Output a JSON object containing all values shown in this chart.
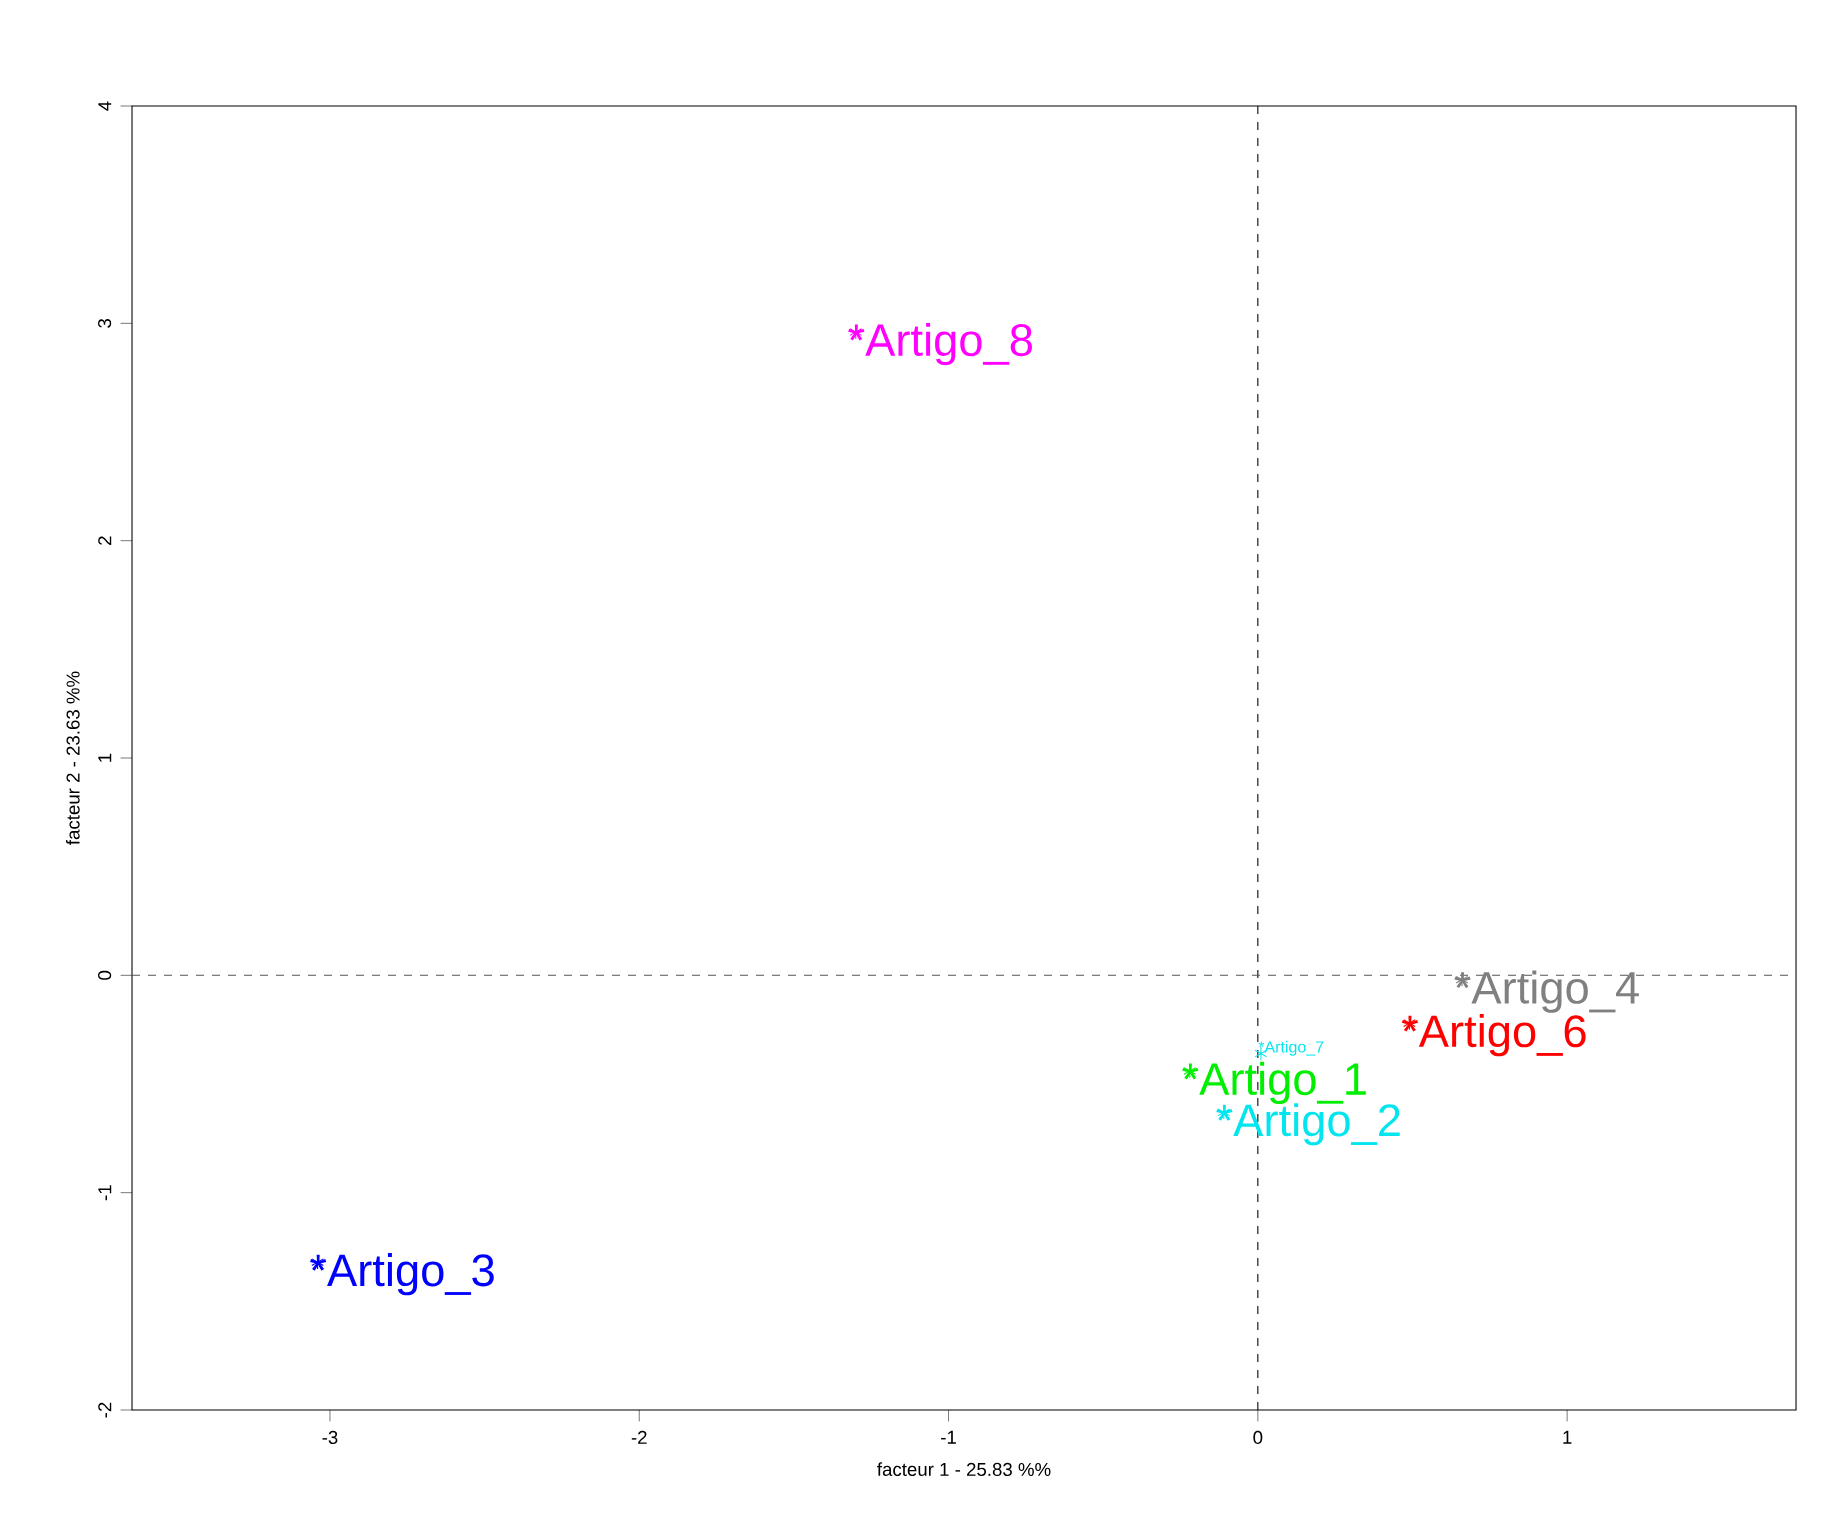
{
  "chart_data": {
    "type": "scatter",
    "marker": "cross",
    "xlabel": "facteur  1  - 25.83 %%",
    "ylabel": "facteur  2  - 23.63 %%",
    "xlim": [
      -3.64,
      1.74
    ],
    "ylim": [
      -2,
      4
    ],
    "xticks": [
      -3,
      -2,
      -1,
      0,
      1
    ],
    "yticks": [
      -2,
      -1,
      0,
      1,
      2,
      3,
      4
    ],
    "ref_lines": [
      {
        "axis": "x",
        "value": 0,
        "color": "#000000",
        "line_style": "dashed"
      },
      {
        "axis": "y",
        "value": 0,
        "color": "#555555",
        "line_style": "dashed"
      }
    ],
    "series": [
      {
        "name": "*Artigo_8",
        "color": "#ff00ff",
        "x": [
          -1.3
        ],
        "values": [
          2.96
        ]
      },
      {
        "name": "*Artigo_3",
        "color": "#0000ff",
        "x": [
          -3.04
        ],
        "values": [
          -1.32
        ]
      },
      {
        "name": "*Artigo_4",
        "color": "#808080",
        "x": [
          0.66
        ],
        "values": [
          -0.02
        ]
      },
      {
        "name": "*Artigo_6",
        "color": "#ff0000",
        "x": [
          0.49
        ],
        "values": [
          -0.22
        ]
      },
      {
        "name": "*Artigo_1",
        "color": "#00ee00",
        "x": [
          -0.22
        ],
        "values": [
          -0.44
        ]
      },
      {
        "name": "*Artigo_7",
        "color": "#00e5ee",
        "x": [
          0.01
        ],
        "values": [
          -0.36
        ]
      },
      {
        "name": "*Artigo_2",
        "color": "#00e5ee",
        "x": [
          -0.11
        ],
        "values": [
          -0.63
        ]
      }
    ]
  }
}
